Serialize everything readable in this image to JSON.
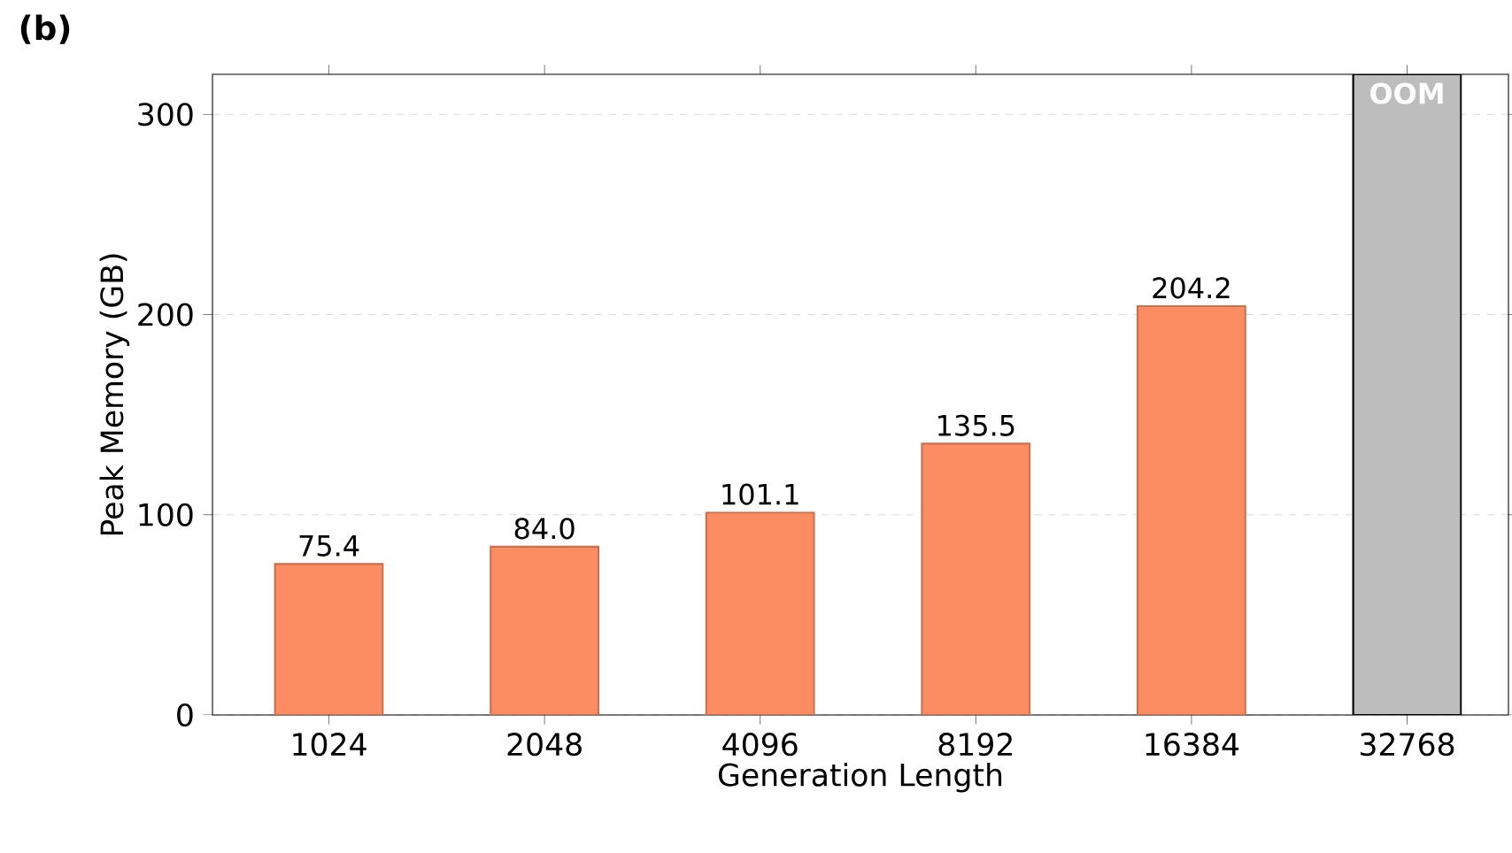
{
  "chart_data": {
    "type": "bar",
    "title": "(b)",
    "categories": [
      "1024",
      "2048",
      "4096",
      "8192",
      "16384",
      "32768"
    ],
    "values": [
      75.4,
      84.0,
      101.1,
      135.5,
      204.2,
      320
    ],
    "colors": [
      "#fc8d62",
      "#fc8d62",
      "#fc8d62",
      "#fc8d62",
      "#fc8d62",
      "#bdbdbd"
    ],
    "value_labels": [
      "75.4",
      "84.0",
      "101.1",
      "135.5",
      "204.2",
      "OOM"
    ],
    "xlabel": "Generation Length",
    "ylabel": "Peak Memory (GB)",
    "ylim": [
      0,
      320
    ],
    "yticks": [
      0,
      100,
      200,
      300
    ],
    "grid": "y"
  }
}
